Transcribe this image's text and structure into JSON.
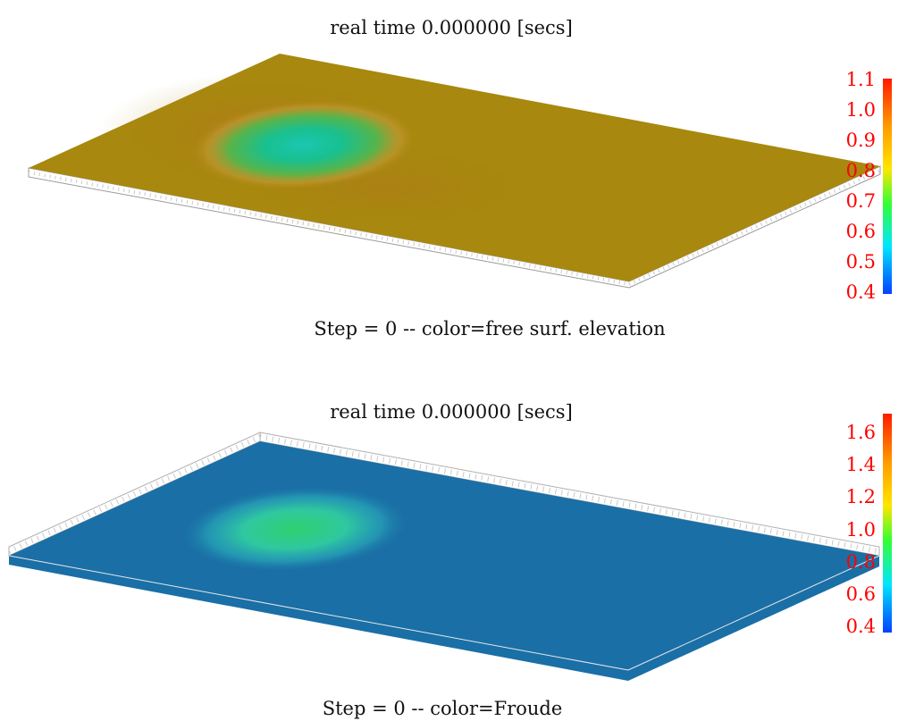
{
  "panels": [
    {
      "title": "real time 0.000000 [secs]",
      "caption": "Step = 0 -- color=free surf. elevation",
      "colorbar": {
        "ticks": [
          "1.1",
          "1.0",
          "0.9",
          "0.8",
          "0.7",
          "0.6",
          "0.5",
          "0.4"
        ],
        "min": 0.4,
        "max": 1.1,
        "tick_color": "#ff0000"
      },
      "surface_color": "#a8880e",
      "bump_color": "#15c8a0"
    },
    {
      "title": "real time 0.000000 [secs]",
      "caption": "Step = 0 -- color=Froude",
      "colorbar": {
        "ticks": [
          "1.6",
          "1.4",
          "1.2",
          "1.0",
          "0.8",
          "0.6",
          "0.4"
        ],
        "min": 0.4,
        "max": 1.7,
        "tick_color": "#ff0000"
      },
      "surface_color": "#1a6fa6",
      "bump_color": "#2fd070"
    }
  ]
}
